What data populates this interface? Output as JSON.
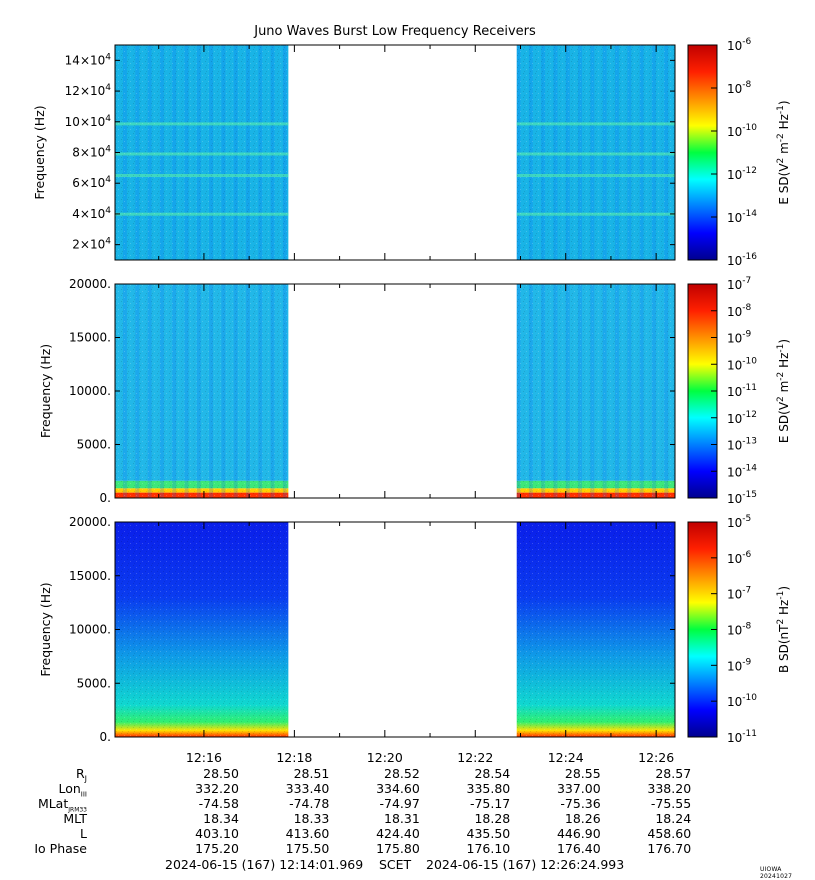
{
  "title": "Juno Waves Burst Low Frequency Receivers",
  "stamp": "UIOWA 20241027",
  "colors": {
    "panel_bg": "#ffffff",
    "axis": "#000000"
  },
  "time_ticks": [
    "12:16",
    "12:18",
    "12:20",
    "12:22",
    "12:24",
    "12:26"
  ],
  "ephemeris": {
    "rows": [
      {
        "label": "R",
        "sub": "J",
        "values": [
          "28.50",
          "28.51",
          "28.52",
          "28.54",
          "28.55",
          "28.57"
        ]
      },
      {
        "label": "Lon",
        "sub": "III",
        "values": [
          "332.20",
          "333.40",
          "334.60",
          "335.80",
          "337.00",
          "338.20"
        ]
      },
      {
        "label": "MLat",
        "sub": "JRM33",
        "values": [
          "-74.58",
          "-74.78",
          "-74.97",
          "-75.17",
          "-75.36",
          "-75.55"
        ]
      },
      {
        "label": "MLT",
        "sub": "",
        "values": [
          "18.34",
          "18.33",
          "18.31",
          "18.28",
          "18.26",
          "18.24"
        ]
      },
      {
        "label": "L",
        "sub": "",
        "values": [
          "403.10",
          "413.60",
          "424.40",
          "435.50",
          "446.90",
          "458.60"
        ]
      },
      {
        "label": "Io Phase",
        "sub": "",
        "values": [
          "175.20",
          "175.50",
          "175.80",
          "176.10",
          "176.40",
          "176.70"
        ]
      }
    ]
  },
  "scet": {
    "start": "2024-06-15 (167) 12:14:01.969",
    "label": "SCET",
    "end": "2024-06-15 (167) 12:26:24.993"
  },
  "chart_data": [
    {
      "type": "heatmap",
      "ylabel": "Frequency (Hz)",
      "yticks": [
        {
          "v": 20000,
          "label": "2×10",
          "exp": "4"
        },
        {
          "v": 40000,
          "label": "4×10",
          "exp": "4"
        },
        {
          "v": 60000,
          "label": "6×10",
          "exp": "4"
        },
        {
          "v": 80000,
          "label": "8×10",
          "exp": "4"
        },
        {
          "v": 100000,
          "label": "10×10",
          "exp": "4"
        },
        {
          "v": 120000,
          "label": "12×10",
          "exp": "4"
        },
        {
          "v": 140000,
          "label": "14×10",
          "exp": "4"
        }
      ],
      "ylim": [
        10000,
        150000
      ],
      "colorbar": {
        "label": "E SD(V",
        "label_mid": " m",
        "label_end": " Hz",
        "ticks": [
          {
            "exp": "-6"
          },
          {
            "exp": "-8"
          },
          {
            "exp": "-10"
          },
          {
            "exp": "-12"
          },
          {
            "exp": "-14"
          },
          {
            "exp": "-16"
          }
        ]
      },
      "data_segments": [
        [
          "12:14:02",
          "12:17:52"
        ],
        [
          "12:22:55",
          "12:26:25"
        ]
      ],
      "dominant_level": "1e-14"
    },
    {
      "type": "heatmap",
      "ylabel": "Frequency (Hz)",
      "yticks": [
        {
          "v": 0,
          "label": "0."
        },
        {
          "v": 5000,
          "label": "5000."
        },
        {
          "v": 10000,
          "label": "10000."
        },
        {
          "v": 15000,
          "label": "15000."
        },
        {
          "v": 20000,
          "label": "20000."
        }
      ],
      "ylim": [
        0,
        20000
      ],
      "colorbar": {
        "label": "E SD(V",
        "label_mid": " m",
        "label_end": " Hz",
        "ticks": [
          {
            "exp": "-7"
          },
          {
            "exp": "-8"
          },
          {
            "exp": "-9"
          },
          {
            "exp": "-10"
          },
          {
            "exp": "-11"
          },
          {
            "exp": "-12"
          },
          {
            "exp": "-13"
          },
          {
            "exp": "-14"
          },
          {
            "exp": "-15"
          }
        ]
      },
      "data_segments": [
        [
          "12:14:02",
          "12:17:52"
        ],
        [
          "12:22:55",
          "12:26:25"
        ]
      ],
      "dominant_level": "1e-13"
    },
    {
      "type": "heatmap",
      "ylabel": "Frequency (Hz)",
      "yticks": [
        {
          "v": 0,
          "label": "0."
        },
        {
          "v": 5000,
          "label": "5000."
        },
        {
          "v": 10000,
          "label": "10000."
        },
        {
          "v": 15000,
          "label": "15000."
        },
        {
          "v": 20000,
          "label": "20000."
        }
      ],
      "ylim": [
        0,
        20000
      ],
      "colorbar": {
        "label": "B SD(nT",
        "label_mid": "",
        "label_end": " Hz",
        "ticks": [
          {
            "exp": "-5"
          },
          {
            "exp": "-6"
          },
          {
            "exp": "-7"
          },
          {
            "exp": "-8"
          },
          {
            "exp": "-9"
          },
          {
            "exp": "-10"
          },
          {
            "exp": "-11"
          }
        ]
      },
      "data_segments": [
        [
          "12:14:02",
          "12:17:52"
        ],
        [
          "12:22:55",
          "12:26:25"
        ]
      ],
      "dominant_level": "1e-10"
    }
  ]
}
